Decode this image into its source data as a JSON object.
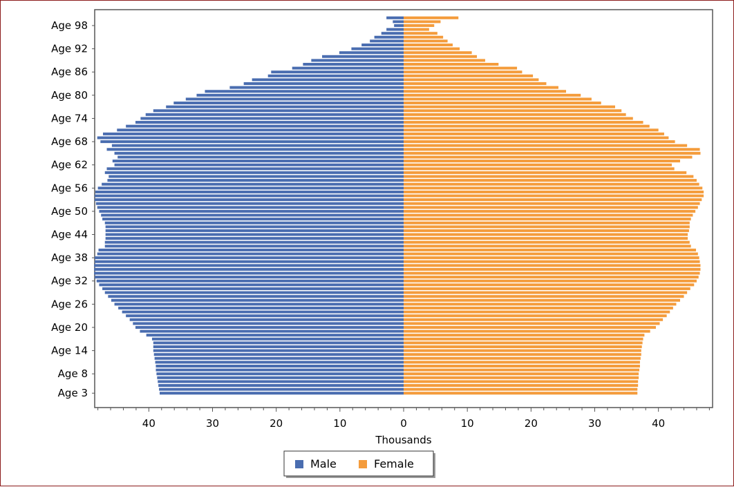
{
  "chart_data": {
    "type": "bar",
    "orientation": "horizontal",
    "title": "",
    "xlabel": "Thousands",
    "ylabel": "",
    "xlim": [
      -48.5,
      48.5
    ],
    "x_ticks": [
      -40,
      -30,
      -20,
      -10,
      0,
      10,
      20,
      30,
      40
    ],
    "x_tick_labels": [
      "40",
      "30",
      "20",
      "10",
      "0",
      "10",
      "20",
      "30",
      "40"
    ],
    "grid": false,
    "legend_position": "bottom-center",
    "categories_shown": [
      "Age 98",
      "Age 92",
      "Age 86",
      "Age 80",
      "Age 74",
      "Age 68",
      "Age 62",
      "Age 56",
      "Age 50",
      "Age 44",
      "Age 38",
      "Age 32",
      "Age 26",
      "Age 20",
      "Age 14",
      "Age 8",
      "Age 3"
    ],
    "categories": [
      "Age 100",
      "Age 99",
      "Age 98",
      "Age 97",
      "Age 96",
      "Age 95",
      "Age 94",
      "Age 93",
      "Age 92",
      "Age 91",
      "Age 90",
      "Age 89",
      "Age 88",
      "Age 87",
      "Age 86",
      "Age 85",
      "Age 84",
      "Age 83",
      "Age 82",
      "Age 81",
      "Age 80",
      "Age 79",
      "Age 78",
      "Age 77",
      "Age 76",
      "Age 75",
      "Age 74",
      "Age 73",
      "Age 72",
      "Age 71",
      "Age 70",
      "Age 69",
      "Age 68",
      "Age 67",
      "Age 66",
      "Age 65",
      "Age 64",
      "Age 63",
      "Age 62",
      "Age 61",
      "Age 60",
      "Age 59",
      "Age 58",
      "Age 57",
      "Age 56",
      "Age 55",
      "Age 54",
      "Age 53",
      "Age 52",
      "Age 51",
      "Age 50",
      "Age 49",
      "Age 48",
      "Age 47",
      "Age 46",
      "Age 45",
      "Age 44",
      "Age 43",
      "Age 42",
      "Age 41",
      "Age 40",
      "Age 39",
      "Age 38",
      "Age 37",
      "Age 36",
      "Age 35",
      "Age 34",
      "Age 33",
      "Age 32",
      "Age 31",
      "Age 30",
      "Age 29",
      "Age 28",
      "Age 27",
      "Age 26",
      "Age 25",
      "Age 24",
      "Age 23",
      "Age 22",
      "Age 21",
      "Age 20",
      "Age 19",
      "Age 18",
      "Age 17",
      "Age 16",
      "Age 15",
      "Age 14",
      "Age 13",
      "Age 12",
      "Age 11",
      "Age 10",
      "Age 9",
      "Age 8",
      "Age 7",
      "Age 6",
      "Age 5",
      "Age 4",
      "Age 3"
    ],
    "series": [
      {
        "name": "Male",
        "color": "#4a6db0",
        "values": [
          2.7,
          1.7,
          1.5,
          2.7,
          3.5,
          4.6,
          5.3,
          6.6,
          8.2,
          10.1,
          12.8,
          14.5,
          15.8,
          17.5,
          20.8,
          21.3,
          23.8,
          25.1,
          27.3,
          31.2,
          32.5,
          34.2,
          36.1,
          37.3,
          39.3,
          40.5,
          41.3,
          42.1,
          43.6,
          45.0,
          47.2,
          48.1,
          47.6,
          45.8,
          46.6,
          45.4,
          44.9,
          45.7,
          45.4,
          46.6,
          46.9,
          46.3,
          46.5,
          47.4,
          48.0,
          48.4,
          48.5,
          48.5,
          48.3,
          48.1,
          47.8,
          47.5,
          47.3,
          46.9,
          46.8,
          46.8,
          46.8,
          46.8,
          46.9,
          46.9,
          47.9,
          48.1,
          48.5,
          48.5,
          48.6,
          48.6,
          48.6,
          48.5,
          48.2,
          47.8,
          47.3,
          46.9,
          46.4,
          45.9,
          45.4,
          44.8,
          44.2,
          43.6,
          43.0,
          42.5,
          42.1,
          41.4,
          40.4,
          39.5,
          39.3,
          39.3,
          39.3,
          39.2,
          39.1,
          39.0,
          38.9,
          38.9,
          38.8,
          38.7,
          38.6,
          38.5,
          38.4,
          38.3
        ]
      },
      {
        "name": "Female",
        "color": "#f49c3c",
        "values": [
          8.6,
          5.8,
          4.8,
          4.0,
          5.3,
          6.2,
          6.9,
          7.7,
          8.8,
          10.7,
          11.5,
          12.8,
          14.9,
          17.8,
          18.6,
          20.3,
          21.2,
          22.4,
          24.3,
          25.5,
          27.8,
          29.5,
          31.0,
          33.2,
          34.2,
          34.9,
          36.0,
          37.6,
          38.6,
          40.0,
          40.9,
          41.6,
          42.6,
          44.5,
          46.5,
          46.6,
          45.3,
          43.4,
          42.1,
          42.5,
          44.4,
          45.5,
          46.0,
          46.4,
          46.9,
          47.1,
          47.1,
          46.8,
          46.5,
          46.2,
          45.8,
          45.4,
          45.1,
          44.9,
          44.9,
          44.8,
          44.6,
          44.6,
          44.9,
          45.1,
          45.9,
          46.2,
          46.4,
          46.5,
          46.6,
          46.6,
          46.5,
          46.3,
          46.0,
          45.6,
          45.0,
          44.5,
          44.0,
          43.4,
          42.8,
          42.3,
          41.8,
          41.3,
          40.7,
          40.2,
          39.6,
          38.7,
          37.8,
          37.6,
          37.5,
          37.4,
          37.3,
          37.3,
          37.2,
          37.1,
          37.1,
          37.0,
          36.9,
          36.9,
          36.8,
          36.8,
          36.7,
          36.7
        ]
      }
    ]
  },
  "legend": {
    "items": [
      {
        "label": "Male",
        "color": "#4a6db0"
      },
      {
        "label": "Female",
        "color": "#f49c3c"
      }
    ]
  }
}
